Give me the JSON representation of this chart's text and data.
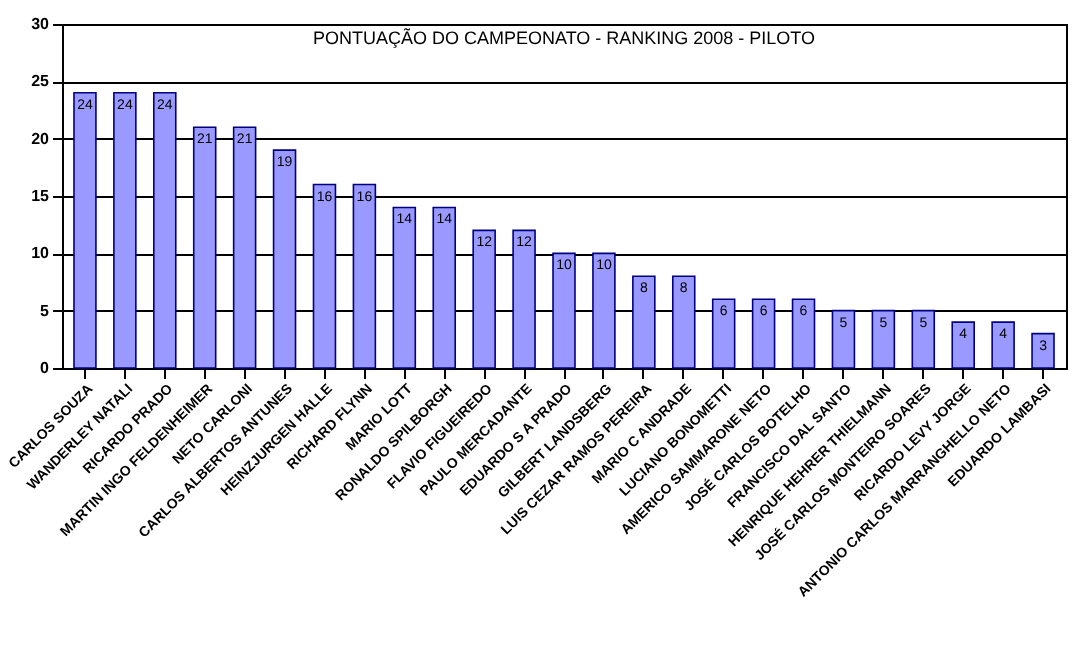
{
  "chart_data": {
    "type": "bar",
    "title": "PONTUAÇÃO DO CAMPEONATO  -  RANKING 2008  -  PILOTO",
    "categories": [
      "CARLOS SOUZA",
      "WANDERLEY NATALI",
      "RICARDO PRADO",
      "MARTIN INGO FELDENHEIMER",
      "NETO CARLONI",
      "CARLOS ALBERTOS ANTUNES",
      "HEINZJURGEN HALLE",
      "RICHARD FLYNN",
      "MARIO LOTT",
      "RONALDO SPILBORGH",
      "FLAVIO FIGUEIREDO",
      "PAULO MERCADANTE",
      "EDUARDO S A PRADO",
      "GILBERT LANDSBERG",
      "LUIS CEZAR RAMOS PEREIRA",
      "MARIO C ANDRADE",
      "LUCIANO BONOMETTI",
      "AMERICO SAMMARONE NETO",
      "JOSÉ CARLOS BOTELHO",
      "FRANCISCO DAL SANTO",
      "HENRIQUE HEHRER THIELMANN",
      "JOSÉ CARLOS MONTEIRO SOARES",
      "RICARDO LEVY JORGE",
      "ANTONIO CARLOS MARRANGHELLO NETO",
      "EDUARDO LAMBASI"
    ],
    "values": [
      24,
      24,
      24,
      21,
      21,
      19,
      16,
      16,
      14,
      14,
      12,
      12,
      10,
      10,
      8,
      8,
      6,
      6,
      6,
      5,
      5,
      5,
      4,
      4,
      3
    ],
    "color": "#9999ff",
    "ylim": [
      0,
      30
    ],
    "yticks": [
      0,
      5,
      10,
      15,
      20,
      25,
      30
    ],
    "grid": "y",
    "data_labels": true
  }
}
